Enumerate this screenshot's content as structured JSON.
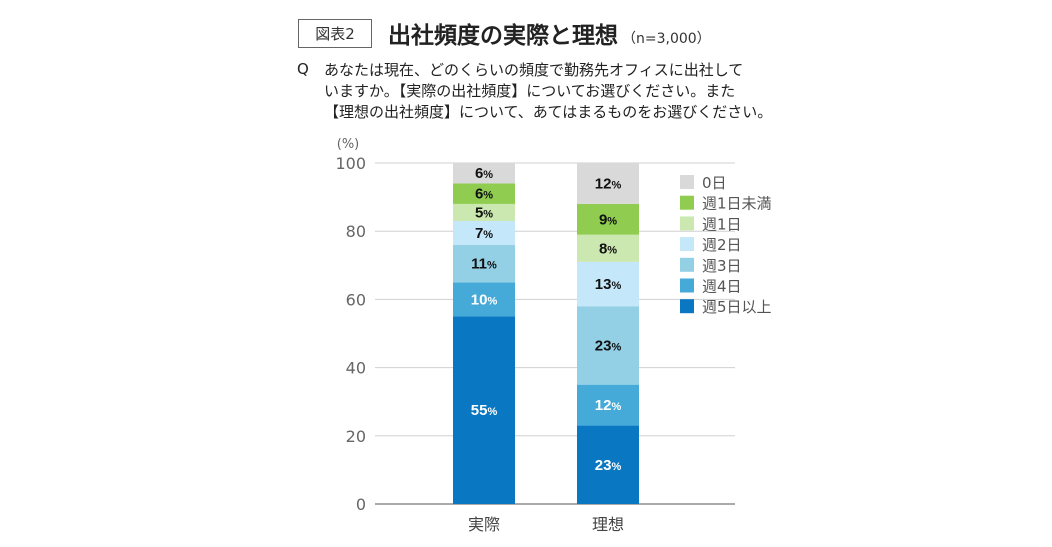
{
  "header": {
    "figure_tag": "図表2",
    "title": "出社頻度の実際と理想",
    "subtitle": "（n=3,000）"
  },
  "question": {
    "mark": "Q",
    "lines": [
      "あなたは現在、どのくらいの頻度で勤務先オフィスに出社して",
      "いますか。【実際の出社頻度】についてお選びください。また",
      "【理想の出社頻度】について、あてはまるものをお選びください。"
    ]
  },
  "chart_data": {
    "type": "bar",
    "stacked": true,
    "unit_label": "(%)",
    "percent_suffix": "%",
    "categories": [
      "実際",
      "理想"
    ],
    "ylim": [
      0,
      100
    ],
    "yticks": [
      0,
      20,
      40,
      60,
      80,
      100
    ],
    "grid": true,
    "legend_position": "right",
    "series": [
      {
        "name": "週5日以上",
        "color": "#0a77c2",
        "label_color": "#ffffff",
        "values": [
          55,
          23
        ]
      },
      {
        "name": "週4日",
        "color": "#45aad8",
        "label_color": "#ffffff",
        "values": [
          10,
          12
        ]
      },
      {
        "name": "週3日",
        "color": "#93d0e5",
        "label_color": "#111111",
        "values": [
          11,
          23
        ]
      },
      {
        "name": "週2日",
        "color": "#c5e7fa",
        "label_color": "#111111",
        "values": [
          7,
          13
        ]
      },
      {
        "name": "週1日",
        "color": "#cbe8b0",
        "label_color": "#111111",
        "values": [
          5,
          8
        ]
      },
      {
        "name": "週1日未満",
        "color": "#8fcc4f",
        "label_color": "#111111",
        "values": [
          6,
          9
        ]
      },
      {
        "name": "0日",
        "color": "#d9d9d9",
        "label_color": "#111111",
        "values": [
          6,
          12
        ]
      }
    ]
  }
}
